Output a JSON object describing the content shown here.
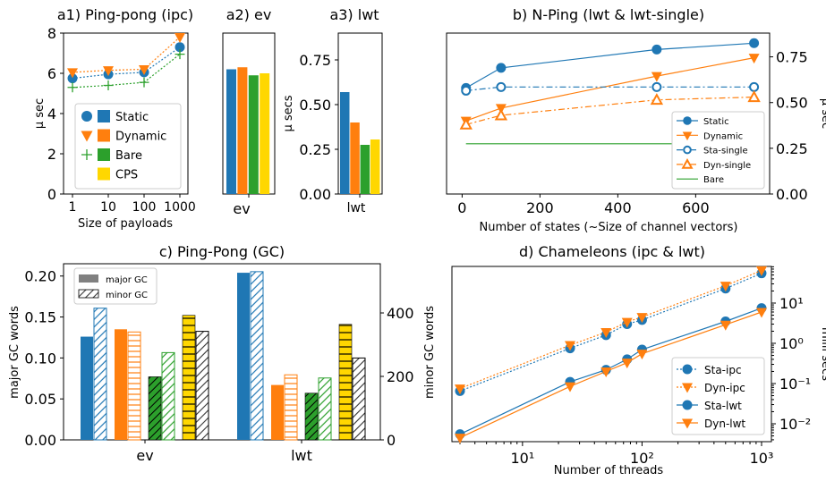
{
  "colors": {
    "blue": "#1f77b4",
    "orange": "#ff7f0e",
    "green": "#2ca02c",
    "yellow": "#ffd700",
    "dark": "#555555",
    "axis": "#000000"
  },
  "chart_data": [
    {
      "id": "a1",
      "type": "line",
      "title": "a1) Ping-pong (ipc)",
      "xlabel": "Size of payloads",
      "ylabel": "μ sec",
      "xscale": "log",
      "x": [
        1,
        10,
        100,
        1000
      ],
      "xticks": [
        "1",
        "10",
        "100",
        "1000"
      ],
      "ylim": [
        0,
        8
      ],
      "yticks": [
        "0",
        "2",
        "4",
        "6",
        "8"
      ],
      "series": [
        {
          "name": "Static",
          "color": "#1f77b4",
          "marker": "circle",
          "values": [
            5.75,
            5.95,
            6.05,
            7.3
          ]
        },
        {
          "name": "Dynamic",
          "color": "#ff7f0e",
          "marker": "triangle-down",
          "values": [
            6.05,
            6.15,
            6.2,
            7.8
          ]
        },
        {
          "name": "Bare",
          "color": "#2ca02c",
          "marker": "plus",
          "values": [
            5.3,
            5.4,
            5.55,
            6.95
          ]
        }
      ],
      "legend": {
        "position": "bottom-right",
        "entries": [
          "Static",
          "Dynamic",
          "Bare",
          "CPS"
        ]
      }
    },
    {
      "id": "a2",
      "type": "bar",
      "title": "a2) ev",
      "categories": [
        "ev"
      ],
      "ylim": [
        0,
        8
      ],
      "series": [
        {
          "name": "Static",
          "color": "#1f77b4",
          "values": [
            6.2
          ]
        },
        {
          "name": "Dynamic",
          "color": "#ff7f0e",
          "values": [
            6.3
          ]
        },
        {
          "name": "Bare",
          "color": "#2ca02c",
          "values": [
            5.9
          ]
        },
        {
          "name": "CPS",
          "color": "#ffd700",
          "values": [
            6.0
          ]
        }
      ]
    },
    {
      "id": "a3",
      "type": "bar",
      "title": "a3) lwt",
      "categories": [
        "lwt"
      ],
      "ylabel": "μ secs",
      "ylim": [
        0,
        0.9
      ],
      "yticks": [
        "0.00",
        "0.25",
        "0.50",
        "0.75"
      ],
      "series": [
        {
          "name": "Static",
          "color": "#1f77b4",
          "values": [
            0.57
          ]
        },
        {
          "name": "Dynamic",
          "color": "#ff7f0e",
          "values": [
            0.4
          ]
        },
        {
          "name": "Bare",
          "color": "#2ca02c",
          "values": [
            0.275
          ]
        },
        {
          "name": "CPS",
          "color": "#ffd700",
          "values": [
            0.305
          ]
        }
      ]
    },
    {
      "id": "b",
      "type": "line",
      "title": "b) N-Ping (lwt & lwt-single)",
      "xlabel": "Number of states (~Size of channel vectors)",
      "ylabel": "μ sec",
      "xlim": [
        -40,
        790
      ],
      "xticks": [
        "0",
        "200",
        "400",
        "600"
      ],
      "ylim": [
        0,
        0.88
      ],
      "yticks": [
        "0.00",
        "0.25",
        "0.50",
        "0.75"
      ],
      "series": [
        {
          "name": "Static",
          "color": "#1f77b4",
          "marker": "circle",
          "style": "solid",
          "x": [
            10,
            100,
            500,
            750
          ],
          "values": [
            0.58,
            0.69,
            0.79,
            0.825
          ]
        },
        {
          "name": "Dynamic",
          "color": "#ff7f0e",
          "marker": "triangle-down",
          "style": "solid",
          "x": [
            10,
            100,
            500,
            750
          ],
          "values": [
            0.4,
            0.47,
            0.645,
            0.745
          ]
        },
        {
          "name": "Sta-single",
          "color": "#1f77b4",
          "marker": "circle-open",
          "style": "dashdot",
          "x": [
            10,
            100,
            500,
            750
          ],
          "values": [
            0.565,
            0.585,
            0.585,
            0.585
          ]
        },
        {
          "name": "Dyn-single",
          "color": "#ff7f0e",
          "marker": "triangle-open",
          "style": "dashdot",
          "x": [
            10,
            100,
            500,
            750
          ],
          "values": [
            0.38,
            0.43,
            0.515,
            0.53
          ]
        },
        {
          "name": "Bare",
          "color": "#2ca02c",
          "marker": "none",
          "style": "solid",
          "x": [
            10,
            750
          ],
          "values": [
            0.275,
            0.275
          ]
        }
      ],
      "legend": {
        "position": "bottom-right"
      }
    },
    {
      "id": "c",
      "type": "bar",
      "title": "c) Ping-Pong (GC)",
      "ylabel": "major GC words",
      "ylabel_right": "minor GC words",
      "categories": [
        "ev",
        "lwt"
      ],
      "ylim": [
        0,
        0.215
      ],
      "yticks": [
        "0.00",
        "0.05",
        "0.10",
        "0.15",
        "0.20"
      ],
      "ylim_right": [
        0,
        555
      ],
      "yticks_right": [
        "0",
        "200",
        "400"
      ],
      "series": [
        {
          "name": "Static",
          "color": "#1f77b4",
          "major": [
            0.126,
            0.204
          ],
          "minor": [
            415,
            530
          ]
        },
        {
          "name": "Dynamic",
          "color": "#ff7f0e",
          "major": [
            0.135,
            0.067
          ],
          "minor": [
            340,
            205
          ]
        },
        {
          "name": "Bare",
          "color": "#2ca02c",
          "major": [
            0.077,
            0.057
          ],
          "minor": [
            275,
            195
          ]
        },
        {
          "name": "CPS",
          "color": "#ffd700",
          "major": [
            0.152,
            0.141
          ],
          "minor": [
            342,
            258
          ]
        }
      ],
      "legend": {
        "position": "top-left",
        "entries": [
          "major GC",
          "minor GC"
        ]
      }
    },
    {
      "id": "d",
      "type": "line",
      "title": "d) Chameleons (ipc & lwt)",
      "xlabel": "Number of threads",
      "ylabel": "milli secs",
      "xscale": "log",
      "yscale": "log",
      "xticks": [
        "10¹",
        "10²",
        "10³"
      ],
      "yticks": [
        "10⁻²",
        "10⁻¹",
        "10⁰",
        "10¹"
      ],
      "x": [
        3,
        25,
        50,
        75,
        100,
        500,
        1000
      ],
      "series": [
        {
          "name": "Sta-ipc",
          "color": "#1f77b4",
          "marker": "circle",
          "style": "dotted",
          "values": [
            0.065,
            0.75,
            1.6,
            3.0,
            3.8,
            23,
            55
          ]
        },
        {
          "name": "Dyn-ipc",
          "color": "#ff7f0e",
          "marker": "triangle-down",
          "style": "dotted",
          "values": [
            0.075,
            0.9,
            1.9,
            3.4,
            4.5,
            27,
            65
          ]
        },
        {
          "name": "Sta-lwt",
          "color": "#1f77b4",
          "marker": "circle",
          "style": "solid",
          "values": [
            0.0055,
            0.11,
            0.22,
            0.4,
            0.7,
            3.5,
            7.5
          ]
        },
        {
          "name": "Dyn-lwt",
          "color": "#ff7f0e",
          "marker": "triangle-down",
          "style": "solid",
          "values": [
            0.0045,
            0.085,
            0.2,
            0.33,
            0.55,
            2.9,
            6.0
          ]
        }
      ],
      "legend": {
        "position": "bottom-right"
      }
    }
  ]
}
